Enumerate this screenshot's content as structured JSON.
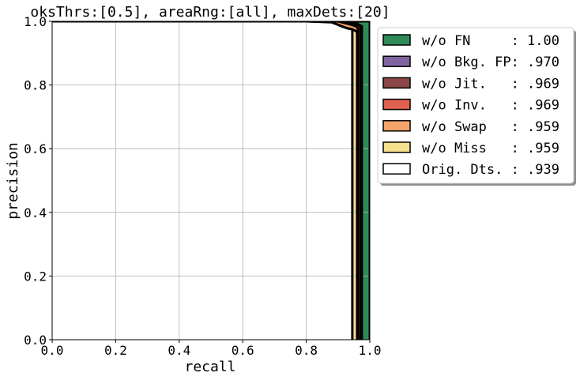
{
  "chart_data": {
    "type": "area",
    "title": "oksThrs:[0.5], areaRng:[all], maxDets:[20]",
    "xlabel": "recall",
    "ylabel": "precision",
    "xlim": [
      0.0,
      1.0
    ],
    "ylim": [
      0.0,
      1.0
    ],
    "grid": true,
    "legend_placement": "outside-right-top",
    "x_ticks": [
      "0.0",
      "0.2",
      "0.4",
      "0.6",
      "0.8",
      "1.0"
    ],
    "y_ticks": [
      "0.0",
      "0.2",
      "0.4",
      "0.6",
      "0.8",
      "1.0"
    ],
    "series": [
      {
        "name": "w/o FN",
        "legend_label": "w/o FN     : 1.00",
        "color": "#2e8b57",
        "points": [
          [
            0.0,
            1.0
          ],
          [
            1.0,
            1.0
          ],
          [
            1.0,
            0.0
          ]
        ]
      },
      {
        "name": "w/o Bkg. FP",
        "legend_label": "w/o Bkg. FP: .970",
        "color": "#8064a2",
        "points": [
          [
            0.0,
            1.0
          ],
          [
            0.8,
            1.0
          ],
          [
            0.9,
            1.0
          ],
          [
            0.95,
            0.997
          ],
          [
            0.965,
            0.99
          ],
          [
            0.975,
            0.985
          ],
          [
            0.975,
            0.0
          ]
        ]
      },
      {
        "name": "w/o Jit.",
        "legend_label": "w/o Jit.   : .969",
        "color": "#8b4747",
        "points": [
          [
            0.0,
            1.0
          ],
          [
            0.8,
            1.0
          ],
          [
            0.9,
            1.0
          ],
          [
            0.95,
            0.995
          ],
          [
            0.963,
            0.99
          ],
          [
            0.972,
            0.985
          ],
          [
            0.972,
            0.0
          ]
        ]
      },
      {
        "name": "w/o Inv.",
        "legend_label": "w/o Inv.   : .969",
        "color": "#e06050",
        "points": [
          [
            0.0,
            1.0
          ],
          [
            0.8,
            1.0
          ],
          [
            0.9,
            1.0
          ],
          [
            0.95,
            0.993
          ],
          [
            0.96,
            0.99
          ],
          [
            0.97,
            0.985
          ],
          [
            0.97,
            0.0
          ]
        ]
      },
      {
        "name": "w/o Swap",
        "legend_label": "w/o Swap   : .959",
        "color": "#f4a46b",
        "points": [
          [
            0.0,
            1.0
          ],
          [
            0.8,
            1.0
          ],
          [
            0.9,
            1.0
          ],
          [
            0.94,
            0.99
          ],
          [
            0.955,
            0.985
          ],
          [
            0.962,
            0.98
          ],
          [
            0.962,
            0.0
          ]
        ]
      },
      {
        "name": "w/o Miss",
        "legend_label": "w/o Miss   : .959",
        "color": "#f5e08e",
        "points": [
          [
            0.0,
            1.0
          ],
          [
            0.8,
            1.0
          ],
          [
            0.88,
            0.998
          ],
          [
            0.91,
            0.985
          ],
          [
            0.93,
            0.978
          ],
          [
            0.945,
            0.975
          ],
          [
            0.955,
            0.97
          ],
          [
            0.96,
            0.965
          ],
          [
            0.96,
            0.0
          ]
        ]
      },
      {
        "name": "Orig. Dts.",
        "legend_label": "Orig. Dts. : .939",
        "color": "#ffffff",
        "points": [
          [
            0.0,
            1.0
          ],
          [
            0.8,
            1.0
          ],
          [
            0.88,
            0.997
          ],
          [
            0.91,
            0.985
          ],
          [
            0.93,
            0.978
          ],
          [
            0.945,
            0.975
          ],
          [
            0.945,
            0.0
          ]
        ]
      }
    ]
  }
}
